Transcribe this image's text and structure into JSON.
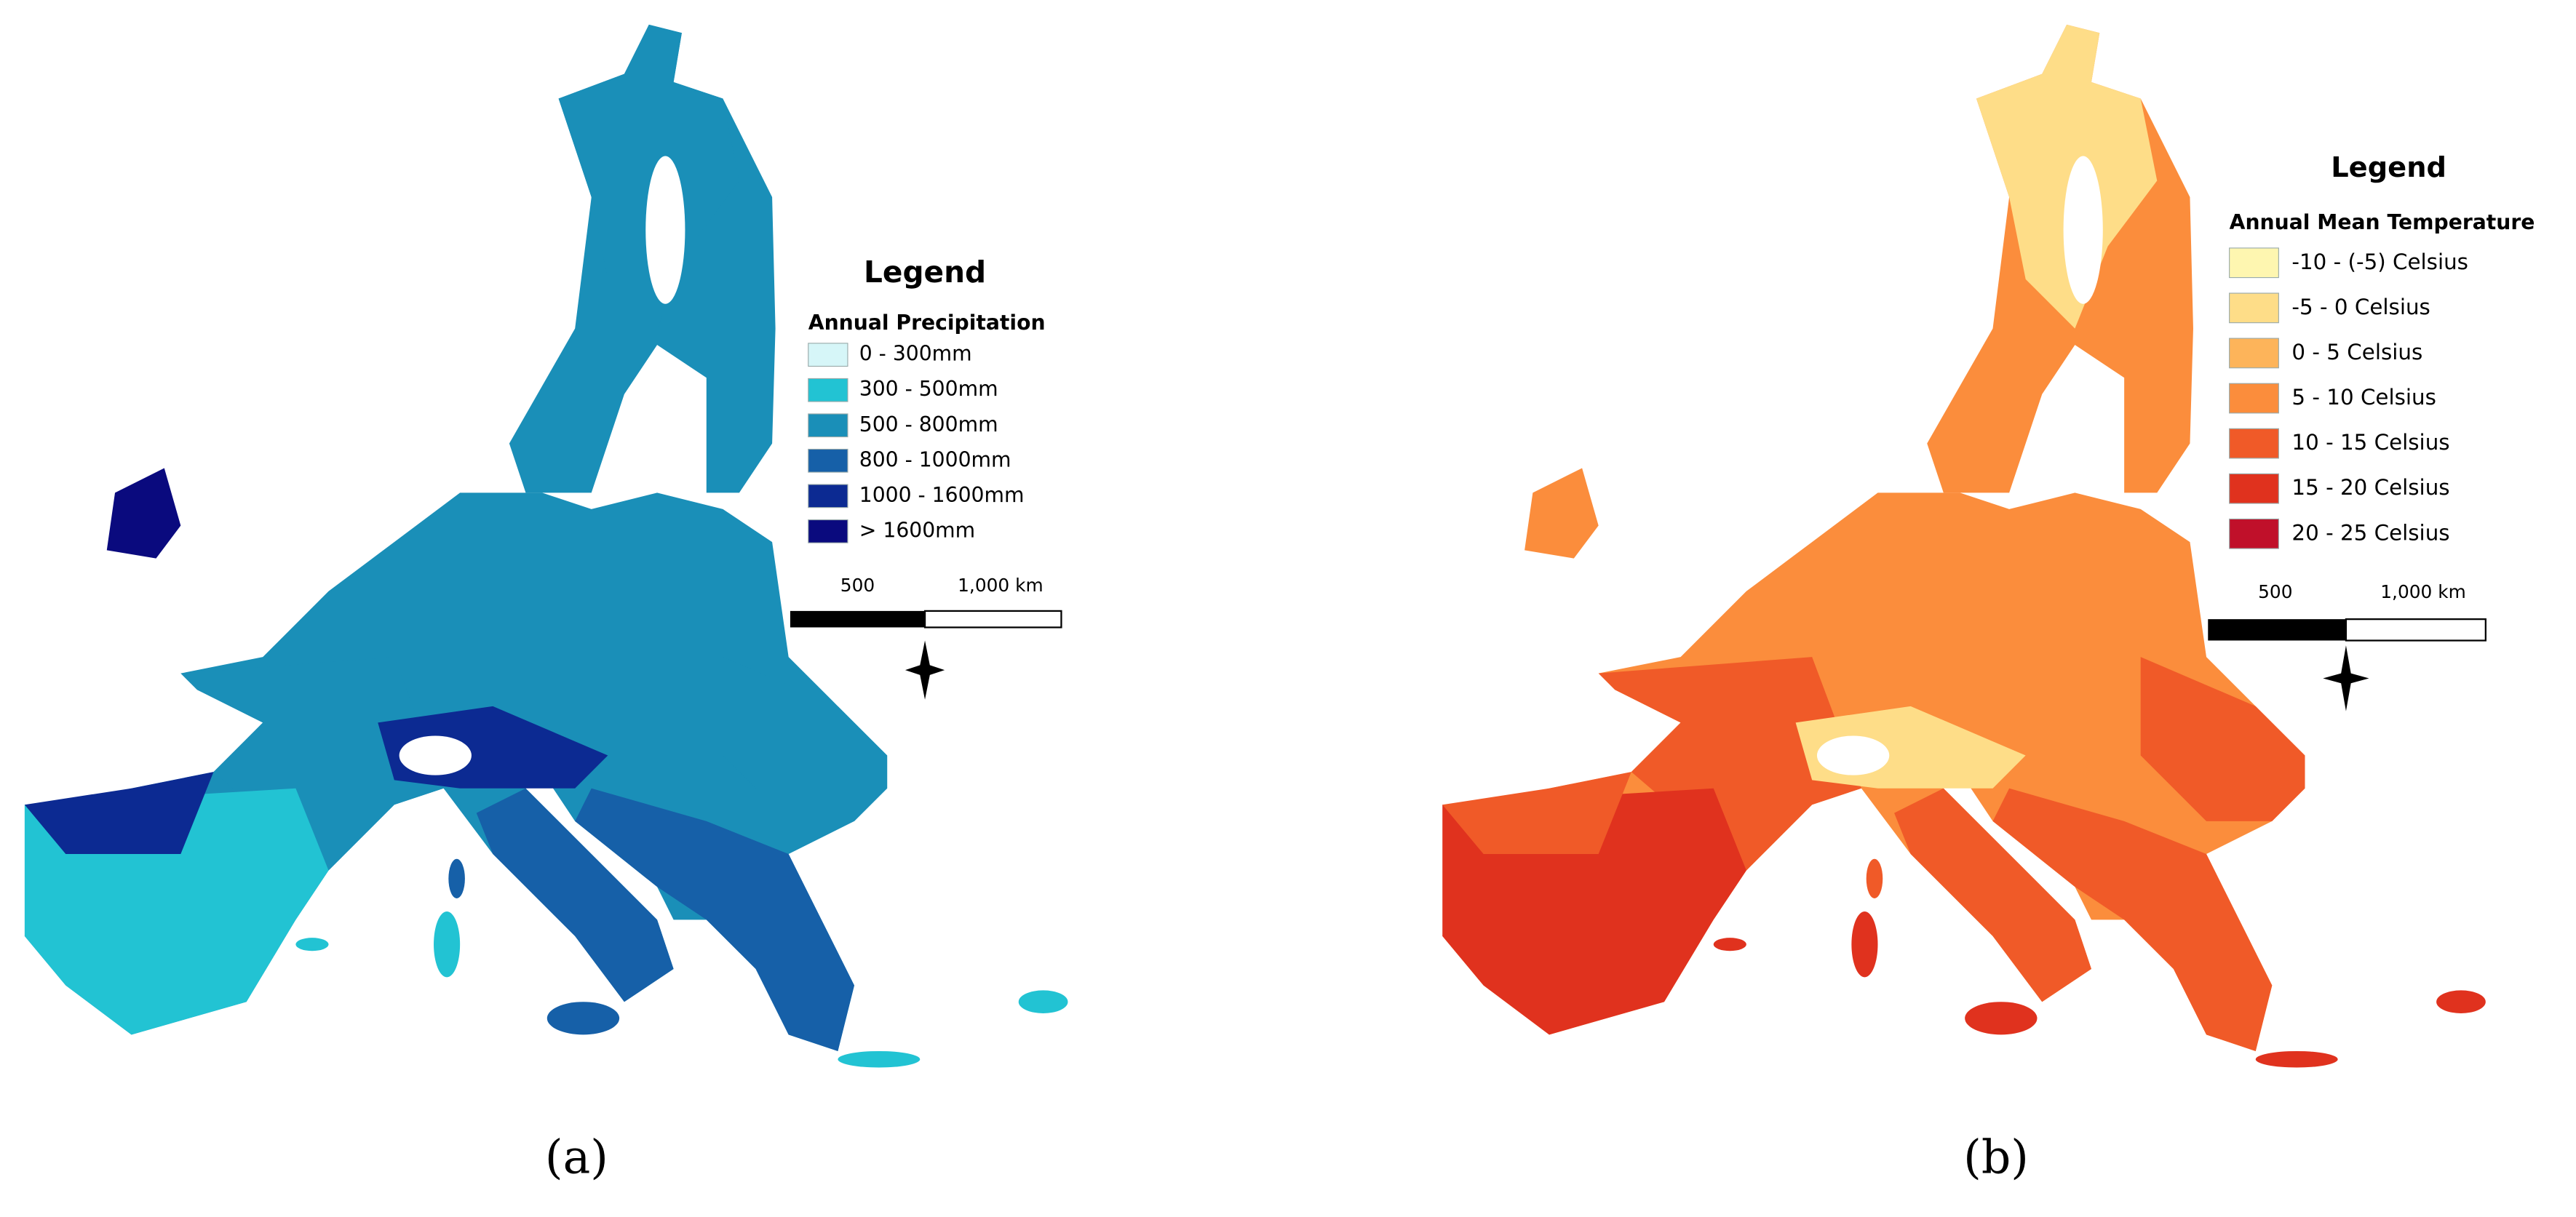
{
  "panels": [
    {
      "legend": {
        "title": "Legend",
        "subtitle": "Annual Precipitation",
        "items": [
          {
            "label": "0 - 300mm",
            "color": "#d6f6f8"
          },
          {
            "label": "300 - 500mm",
            "color": "#22c3d3"
          },
          {
            "label": "500 - 800mm",
            "color": "#1a8fb8"
          },
          {
            "label": "800 - 1000mm",
            "color": "#1660a8"
          },
          {
            "label": "1000 - 1600mm",
            "color": "#0c2a92"
          },
          {
            "label": "> 1600mm",
            "color": "#0a0a7e"
          }
        ]
      },
      "scale_bar": {
        "labels": [
          "500",
          "1,000 km"
        ]
      },
      "label": "(a)"
    },
    {
      "legend": {
        "title": "Legend",
        "subtitle": "Annual Mean Temperature",
        "items": [
          {
            "label": "-10 - (-5)  Celsius",
            "color": "#fef6b0"
          },
          {
            "label": "-5 - 0  Celsius",
            "color": "#fedd88"
          },
          {
            "label": "0 - 5  Celsius",
            "color": "#fdb45a"
          },
          {
            "label": "5 - 10  Celsius",
            "color": "#fb8d3c"
          },
          {
            "label": "10 - 15  Celsius",
            "color": "#f05a28"
          },
          {
            "label": "15 - 20  Celsius",
            "color": "#e0321e"
          },
          {
            "label": "20 - 25  Celsius",
            "color": "#c0102a"
          }
        ]
      },
      "scale_bar": {
        "labels": [
          "500",
          "1,000 km"
        ]
      },
      "label": "(b)"
    }
  ]
}
